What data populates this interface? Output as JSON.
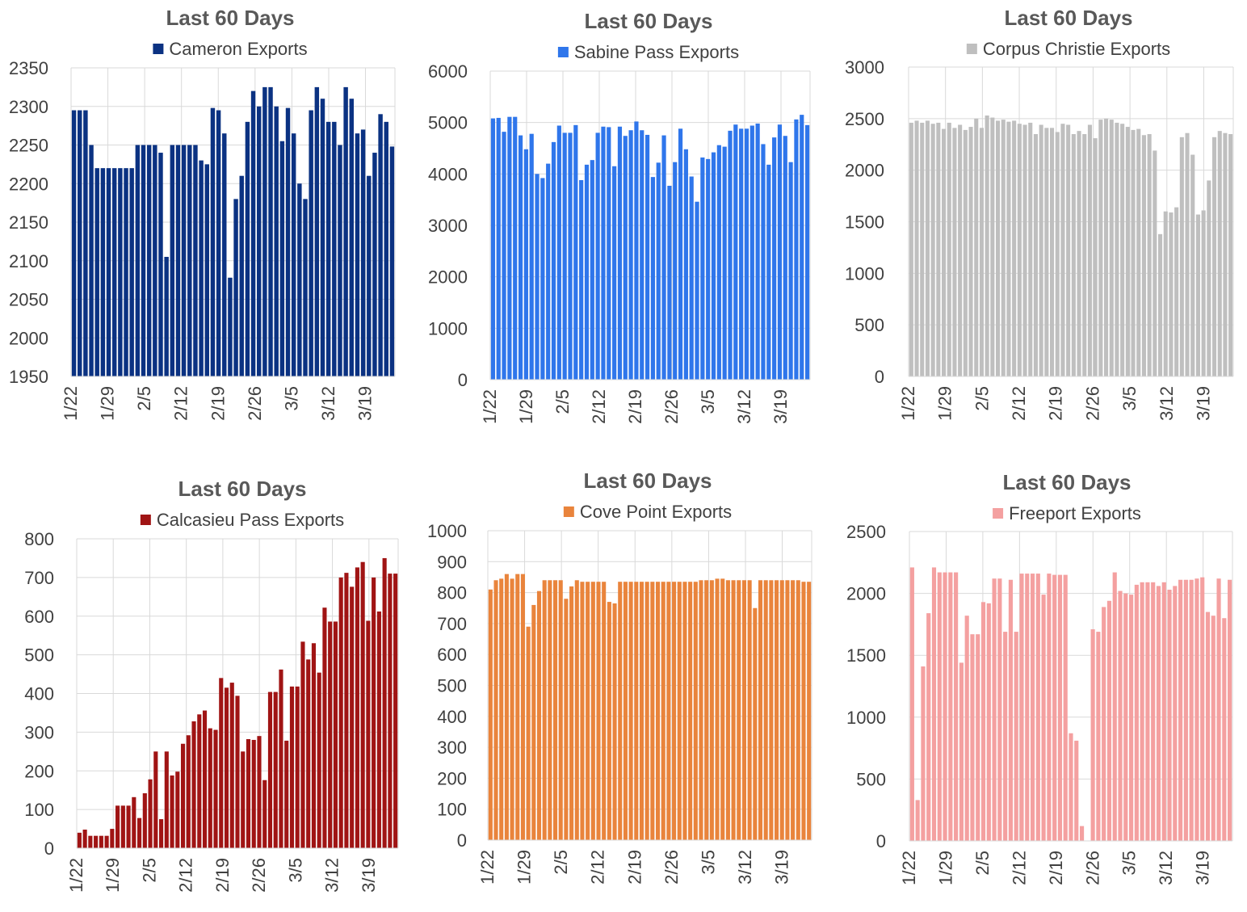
{
  "chart_data": [
    {
      "type": "bar",
      "title": "Last 60 Days",
      "legend": "Cameron Exports",
      "color": "#0B3282",
      "ylim": [
        1950,
        2350
      ],
      "yticks": [
        "1950",
        "2000",
        "2050",
        "2100",
        "2150",
        "2200",
        "2250",
        "2300",
        "2350"
      ],
      "xticks": [
        "1/22",
        "1/29",
        "2/5",
        "2/12",
        "2/19",
        "2/26",
        "3/5",
        "3/12",
        "3/19"
      ],
      "grid": true,
      "legend_position": "top",
      "values": [
        2295,
        2295,
        2295,
        2250,
        2220,
        2220,
        2220,
        2220,
        2220,
        2220,
        2220,
        2250,
        2250,
        2250,
        2250,
        2240,
        2105,
        2250,
        2250,
        2250,
        2250,
        2250,
        2230,
        2225,
        2298,
        2295,
        2265,
        2078,
        2180,
        2210,
        2280,
        2320,
        2300,
        2325,
        2325,
        2300,
        2255,
        2298,
        2265,
        2200,
        2180,
        2295,
        2325,
        2310,
        2280,
        2280,
        2250,
        2325,
        2310,
        2265,
        2270,
        2210,
        2240,
        2290,
        2280,
        2248
      ]
    },
    {
      "type": "bar",
      "title": "Last 60 Days",
      "legend": "Sabine Pass Exports",
      "color": "#2F76EB",
      "ylim": [
        0,
        6000
      ],
      "yticks": [
        "0",
        "1000",
        "2000",
        "3000",
        "4000",
        "5000",
        "6000"
      ],
      "xticks": [
        "1/22",
        "1/29",
        "2/5",
        "2/12",
        "2/19",
        "2/26",
        "3/5",
        "3/12",
        "3/19"
      ],
      "grid": true,
      "legend_position": "top",
      "values": [
        5080,
        5090,
        4820,
        5110,
        5110,
        4750,
        4480,
        4780,
        4000,
        3920,
        4200,
        4620,
        4940,
        4800,
        4800,
        4950,
        3880,
        4180,
        4270,
        4800,
        4920,
        4910,
        4150,
        4920,
        4740,
        4850,
        5020,
        4850,
        4760,
        3940,
        4220,
        4750,
        3770,
        4230,
        4880,
        4480,
        3950,
        3460,
        4320,
        4290,
        4420,
        4560,
        4530,
        4840,
        4960,
        4880,
        4880,
        4940,
        4980,
        4580,
        4180,
        4710,
        4960,
        4740,
        4230,
        5060,
        5150,
        4950
      ]
    },
    {
      "type": "bar",
      "title": "Last 60 Days",
      "legend": "Corpus Christie Exports",
      "color": "#BFBFBF",
      "ylim": [
        0,
        3000
      ],
      "yticks": [
        "0",
        "500",
        "1000",
        "1500",
        "2000",
        "2500",
        "3000"
      ],
      "xticks": [
        "1/22",
        "1/29",
        "2/5",
        "2/12",
        "2/19",
        "2/26",
        "3/5",
        "3/12",
        "3/19"
      ],
      "grid": true,
      "legend_position": "top",
      "values": [
        2460,
        2480,
        2460,
        2480,
        2450,
        2460,
        2400,
        2460,
        2410,
        2440,
        2390,
        2420,
        2500,
        2410,
        2530,
        2510,
        2480,
        2490,
        2470,
        2480,
        2450,
        2440,
        2460,
        2350,
        2440,
        2410,
        2410,
        2370,
        2450,
        2440,
        2350,
        2380,
        2350,
        2440,
        2310,
        2490,
        2500,
        2490,
        2460,
        2450,
        2420,
        2390,
        2400,
        2340,
        2350,
        2190,
        1380,
        1600,
        1590,
        1640,
        2320,
        2360,
        2150,
        1570,
        1610,
        1900,
        2320,
        2380,
        2360,
        2350
      ]
    },
    {
      "type": "bar",
      "title": "Last 60 Days",
      "legend": "Calcasieu Pass Exports",
      "color": "#A01414",
      "ylim": [
        0,
        800
      ],
      "yticks": [
        "0",
        "100",
        "200",
        "300",
        "400",
        "500",
        "600",
        "700",
        "800"
      ],
      "xticks": [
        "1/22",
        "1/29",
        "2/5",
        "2/12",
        "2/19",
        "2/26",
        "3/5",
        "3/12",
        "3/19"
      ],
      "grid": true,
      "legend_position": "top",
      "values": [
        40,
        48,
        32,
        32,
        32,
        32,
        50,
        110,
        110,
        110,
        132,
        78,
        142,
        178,
        250,
        75,
        250,
        188,
        198,
        270,
        292,
        328,
        346,
        356,
        310,
        306,
        440,
        415,
        428,
        394,
        250,
        282,
        280,
        290,
        176,
        404,
        404,
        462,
        278,
        418,
        418,
        534,
        488,
        530,
        454,
        622,
        586,
        586,
        700,
        712,
        676,
        726,
        740,
        588,
        700,
        612,
        750,
        710,
        710
      ]
    },
    {
      "type": "bar",
      "title": "Last 60 Days",
      "legend": "Cove Point Exports",
      "color": "#E9843C",
      "ylim": [
        0,
        1000
      ],
      "yticks": [
        "0",
        "100",
        "200",
        "300",
        "400",
        "500",
        "600",
        "700",
        "800",
        "900",
        "1000"
      ],
      "xticks": [
        "1/22",
        "1/29",
        "2/5",
        "2/12",
        "2/19",
        "2/26",
        "3/5",
        "3/12",
        "3/19"
      ],
      "grid": true,
      "legend_position": "top",
      "values": [
        810,
        840,
        845,
        860,
        845,
        860,
        860,
        690,
        760,
        805,
        840,
        840,
        840,
        840,
        780,
        820,
        840,
        835,
        835,
        835,
        835,
        835,
        770,
        765,
        835,
        835,
        835,
        835,
        835,
        835,
        835,
        835,
        835,
        835,
        835,
        835,
        835,
        835,
        835,
        840,
        840,
        840,
        845,
        845,
        840,
        840,
        840,
        840,
        840,
        750,
        840,
        840,
        840,
        840,
        840,
        840,
        840,
        840,
        835,
        835
      ]
    },
    {
      "type": "bar",
      "title": "Last 60 Days",
      "legend": "Freeport Exports",
      "color": "#F4A0A0",
      "ylim": [
        0,
        2500
      ],
      "yticks": [
        "0",
        "500",
        "1000",
        "1500",
        "2000",
        "2500"
      ],
      "xticks": [
        "1/22",
        "1/29",
        "2/5",
        "2/12",
        "2/19",
        "2/26",
        "3/5",
        "3/12",
        "3/19"
      ],
      "grid": true,
      "legend_position": "top",
      "values": [
        2210,
        330,
        1410,
        1840,
        2210,
        2170,
        2170,
        2170,
        2170,
        1440,
        1820,
        1670,
        1670,
        1930,
        1920,
        2120,
        2120,
        1690,
        2110,
        1690,
        2160,
        2160,
        2160,
        2160,
        1990,
        2160,
        2150,
        2150,
        2150,
        870,
        810,
        120,
        0,
        1710,
        1690,
        1890,
        1940,
        2170,
        2020,
        2000,
        1990,
        2070,
        2090,
        2090,
        2090,
        2060,
        2090,
        2030,
        2060,
        2110,
        2110,
        2110,
        2120,
        2130,
        1850,
        1820,
        2120,
        1800,
        2110
      ]
    }
  ]
}
